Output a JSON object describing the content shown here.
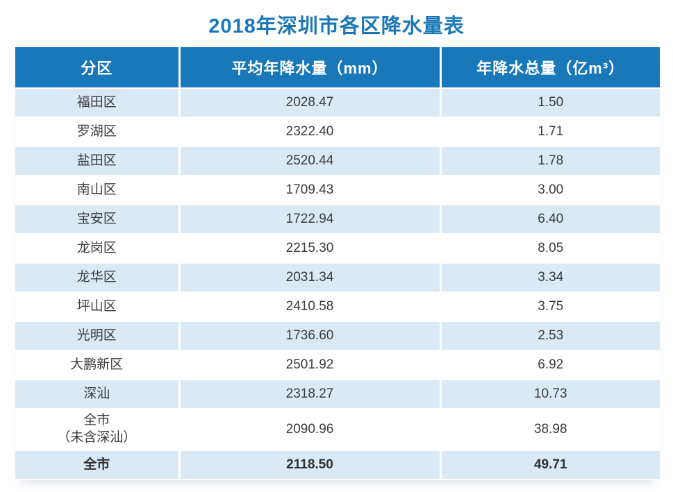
{
  "page": {
    "title": "2018年深圳市各区降水量表"
  },
  "colors": {
    "title_text": "#1b78b8",
    "header_bg": "#1878b9",
    "header_text": "#ffffff",
    "row_alt_bg": "#dbe9f5",
    "row_bg": "#ffffff",
    "cell_text": "#3b3b3b"
  },
  "table": {
    "headers": {
      "district": "分区",
      "avg": "平均年降水量（mm）",
      "total": "年降水总量（亿m³）"
    },
    "rows": [
      {
        "district": "福田区",
        "avg_mm": "2028.47",
        "total_ym3": "1.50"
      },
      {
        "district": "罗湖区",
        "avg_mm": "2322.40",
        "total_ym3": "1.71"
      },
      {
        "district": "盐田区",
        "avg_mm": "2520.44",
        "total_ym3": "1.78"
      },
      {
        "district": "南山区",
        "avg_mm": "1709.43",
        "total_ym3": "3.00"
      },
      {
        "district": "宝安区",
        "avg_mm": "1722.94",
        "total_ym3": "6.40"
      },
      {
        "district": "龙岗区",
        "avg_mm": "2215.30",
        "total_ym3": "8.05"
      },
      {
        "district": "龙华区",
        "avg_mm": "2031.34",
        "total_ym3": "3.34"
      },
      {
        "district": "坪山区",
        "avg_mm": "2410.58",
        "total_ym3": "3.75"
      },
      {
        "district": "光明区",
        "avg_mm": "1736.60",
        "total_ym3": "2.53"
      },
      {
        "district": "大鹏新区",
        "avg_mm": "2501.92",
        "total_ym3": "6.92"
      },
      {
        "district": "深汕",
        "avg_mm": "2318.27",
        "total_ym3": "10.73"
      },
      {
        "district": "全市\n（未含深汕）",
        "avg_mm": "2090.96",
        "total_ym3": "38.98"
      },
      {
        "district": "全市",
        "avg_mm": "2118.50",
        "total_ym3": "49.71"
      }
    ]
  },
  "chart_data": {
    "type": "table",
    "title": "2018年深圳市各区降水量表",
    "columns": [
      "分区",
      "平均年降水量（mm）",
      "年降水总量（亿m³）"
    ],
    "rows": [
      [
        "福田区",
        2028.47,
        1.5
      ],
      [
        "罗湖区",
        2322.4,
        1.71
      ],
      [
        "盐田区",
        2520.44,
        1.78
      ],
      [
        "南山区",
        1709.43,
        3.0
      ],
      [
        "宝安区",
        1722.94,
        6.4
      ],
      [
        "龙岗区",
        2215.3,
        8.05
      ],
      [
        "龙华区",
        2031.34,
        3.34
      ],
      [
        "坪山区",
        2410.58,
        3.75
      ],
      [
        "光明区",
        1736.6,
        2.53
      ],
      [
        "大鹏新区",
        2501.92,
        6.92
      ],
      [
        "深汕",
        2318.27,
        10.73
      ],
      [
        "全市（未含深汕）",
        2090.96,
        38.98
      ],
      [
        "全市",
        2118.5,
        49.71
      ]
    ]
  }
}
